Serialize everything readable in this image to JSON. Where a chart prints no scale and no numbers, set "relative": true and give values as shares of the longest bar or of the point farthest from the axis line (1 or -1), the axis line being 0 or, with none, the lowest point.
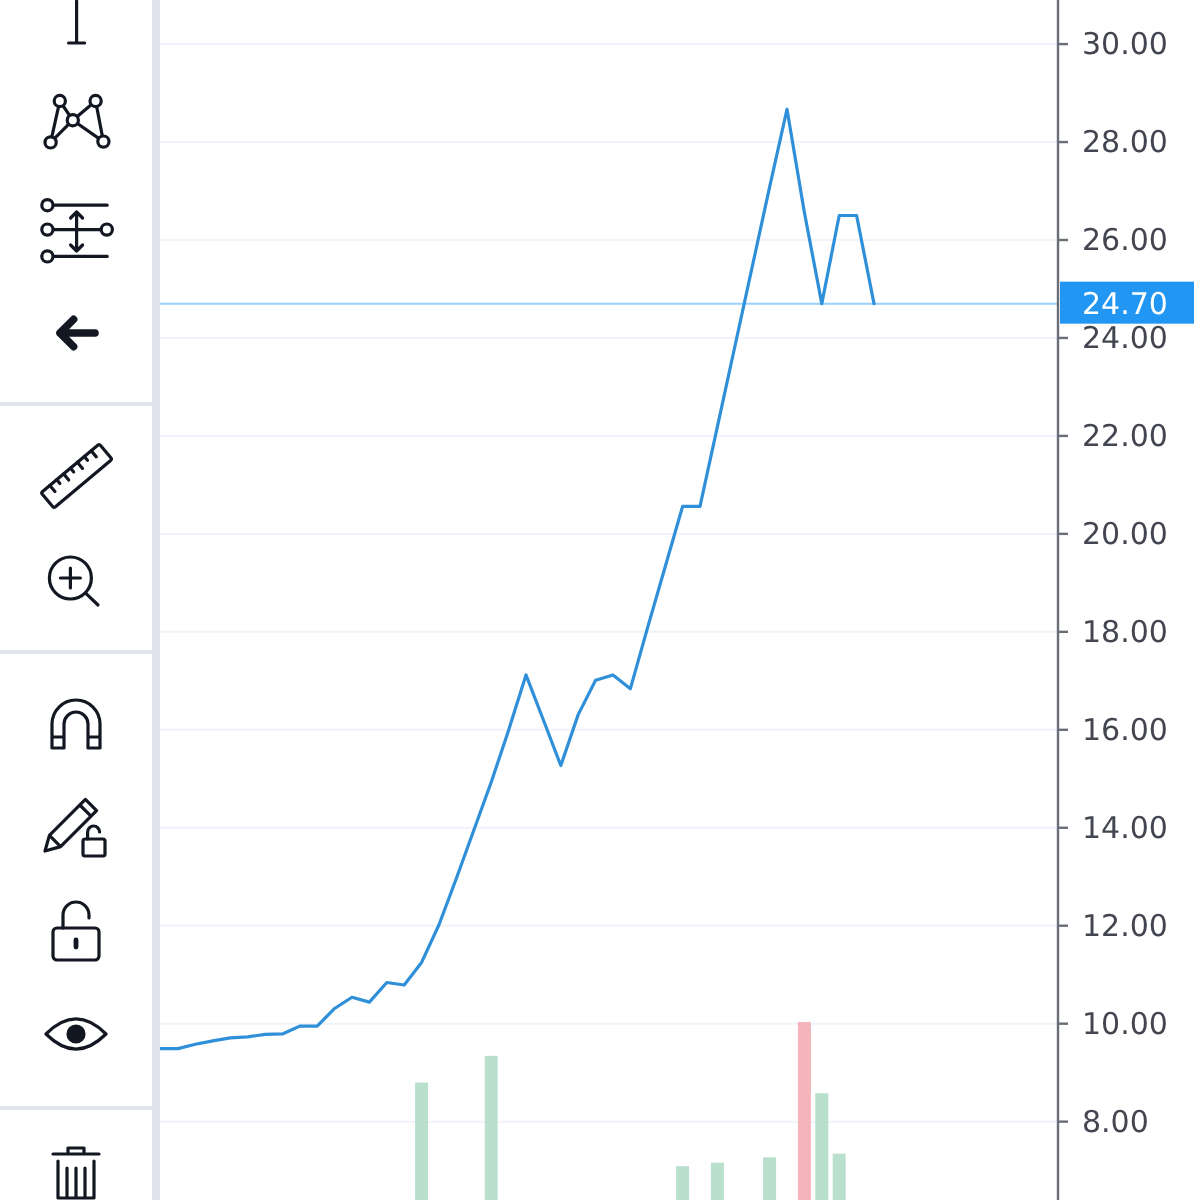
{
  "chart_data": [
    {
      "type": "line",
      "categories": [
        null,
        null,
        null,
        null,
        null,
        null,
        null,
        null,
        null,
        null,
        null,
        null,
        null,
        null,
        null,
        null,
        null,
        null,
        null,
        null,
        null,
        null,
        null,
        null,
        null,
        null,
        null,
        null,
        null,
        null,
        null,
        null,
        null,
        null,
        null,
        null,
        null,
        null,
        null,
        null,
        null,
        null,
        null,
        null,
        null,
        null,
        null,
        null,
        null,
        null,
        null,
        null
      ],
      "values": [
        9.49,
        9.49,
        9.58,
        9.65,
        9.71,
        9.73,
        9.78,
        9.79,
        9.95,
        9.95,
        10.31,
        10.54,
        10.44,
        10.84,
        10.79,
        11.25,
        12.02,
        12.97,
        13.95,
        14.93,
        15.99,
        17.12,
        16.2,
        15.27,
        16.31,
        17.01,
        17.12,
        16.84,
        18.1,
        19.33,
        20.56,
        20.56,
        22.19,
        23.82,
        25.45,
        27.08,
        28.67,
        26.56,
        24.7,
        26.5,
        26.5,
        24.7,
        null,
        null,
        null,
        null,
        null,
        null,
        null,
        null,
        null,
        null
      ],
      "color": "#2f8fd8",
      "ylim": [
        6.4,
        30.9
      ],
      "yticks": [
        {
          "value": 8,
          "label": "8.00"
        },
        {
          "value": 10,
          "label": "10.00"
        },
        {
          "value": 12,
          "label": "12.00"
        },
        {
          "value": 14,
          "label": "14.00"
        },
        {
          "value": 16,
          "label": "16.00"
        },
        {
          "value": 18,
          "label": "18.00"
        },
        {
          "value": 20,
          "label": "20.00"
        },
        {
          "value": 22,
          "label": "22.00"
        },
        {
          "value": 24,
          "label": "24.00"
        },
        {
          "value": 26,
          "label": "26.00"
        },
        {
          "value": 28,
          "label": "28.00"
        },
        {
          "value": 30,
          "label": "30.00"
        }
      ],
      "grid": "y",
      "tick_labels": "y",
      "ref_lines": [
        {
          "axis": "y",
          "value": 24.7,
          "label": "24.70",
          "color": "#2196f3"
        }
      ]
    },
    {
      "type": "bar",
      "relative": true,
      "categories": [
        null,
        null,
        null,
        null,
        null,
        null,
        null,
        null,
        null,
        null,
        null,
        null,
        null,
        null,
        null,
        null,
        null,
        null,
        null,
        null,
        null,
        null,
        null,
        null,
        null,
        null,
        null,
        null,
        null,
        null,
        null,
        null,
        null,
        null,
        null,
        null,
        null,
        null,
        null,
        null,
        null,
        null,
        null,
        null,
        null,
        null,
        null,
        null,
        null,
        null,
        null,
        null
      ],
      "values": [
        null,
        null,
        null,
        null,
        null,
        null,
        null,
        null,
        null,
        null,
        null,
        null,
        null,
        null,
        null,
        0.66,
        null,
        null,
        null,
        0.81,
        null,
        null,
        null,
        null,
        null,
        null,
        null,
        null,
        null,
        null,
        0.19,
        null,
        0.21,
        null,
        null,
        0.24,
        null,
        1,
        0.6,
        0.26,
        null,
        null,
        null,
        null,
        null,
        null,
        null,
        null,
        null,
        null,
        null,
        null
      ],
      "colors": [
        null,
        null,
        null,
        null,
        null,
        null,
        null,
        null,
        null,
        null,
        null,
        null,
        null,
        null,
        null,
        "#b8e0cd",
        null,
        null,
        null,
        "#b8e0cd",
        null,
        null,
        null,
        null,
        null,
        null,
        null,
        null,
        null,
        null,
        "#b8e0cd",
        null,
        "#b8e0cd",
        null,
        null,
        "#b8e0cd",
        null,
        "#f4b4bb",
        "#b8e0cd",
        "#b8e0cd",
        null,
        null,
        null,
        null,
        null,
        null,
        null,
        null,
        null,
        null,
        null,
        null
      ]
    }
  ]
}
